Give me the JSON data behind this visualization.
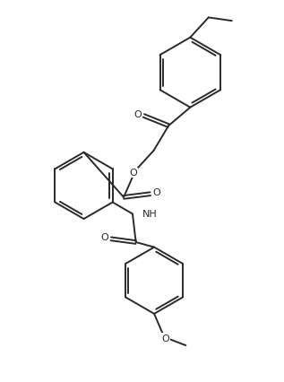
{
  "bg_color": "#ffffff",
  "line_color": "#2a2a2a",
  "line_width": 1.4,
  "figsize": [
    3.17,
    4.27
  ],
  "dpi": 100,
  "xlim": [
    0,
    8.5
  ],
  "ylim": [
    0,
    11.5
  ]
}
